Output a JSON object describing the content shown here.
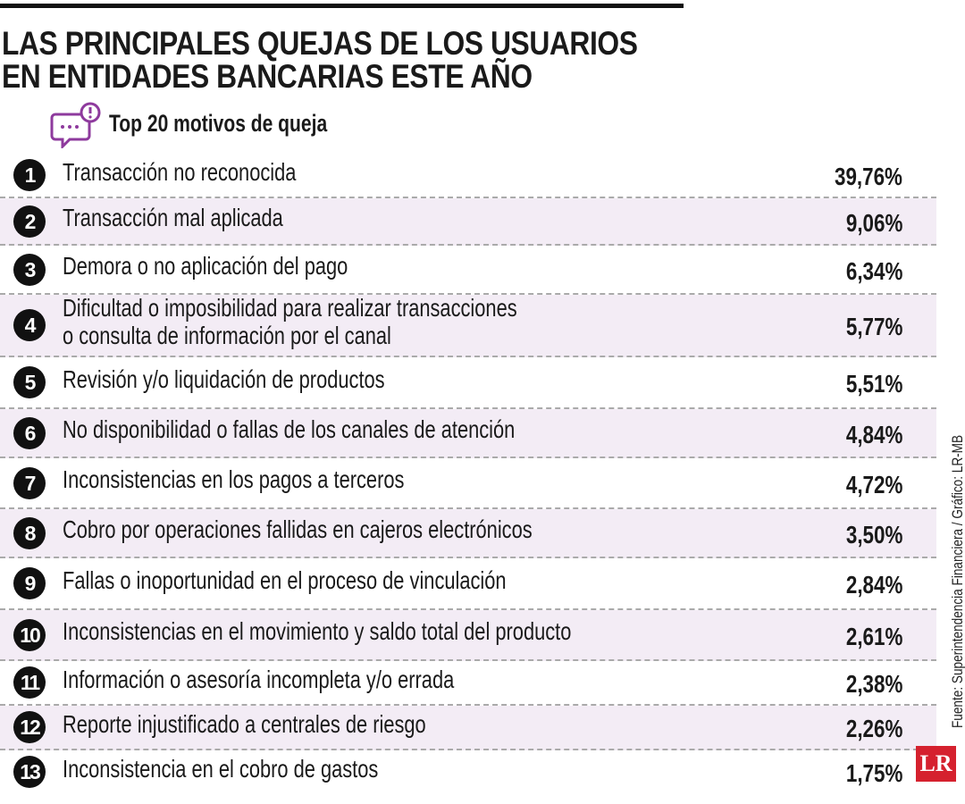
{
  "header": {
    "title_lines": [
      "LAS PRINCIPALES QUEJAS DE LOS USUARIOS",
      "EN ENTIDADES BANCARIAS ESTE AÑO"
    ],
    "subtitle": "Top 20 motivos de queja"
  },
  "rows": [
    {
      "rank": "1",
      "lines": [
        "Transacción no reconocida"
      ],
      "value": "39,76%"
    },
    {
      "rank": "2",
      "lines": [
        "Transacción mal aplicada"
      ],
      "value": "9,06%"
    },
    {
      "rank": "3",
      "lines": [
        "Demora o no aplicación del pago"
      ],
      "value": "6,34%"
    },
    {
      "rank": "4",
      "lines": [
        "Dificultad o imposibilidad para realizar transacciones",
        "o consulta de información por el canal"
      ],
      "value": "5,77%"
    },
    {
      "rank": "5",
      "lines": [
        "Revisión y/o liquidación de productos"
      ],
      "value": "5,51%"
    },
    {
      "rank": "6",
      "lines": [
        "No disponibilidad o fallas de los canales de atención"
      ],
      "value": "4,84%"
    },
    {
      "rank": "7",
      "lines": [
        "Inconsistencias en los pagos a terceros"
      ],
      "value": "4,72%"
    },
    {
      "rank": "8",
      "lines": [
        "Cobro por operaciones fallidas en cajeros electrónicos"
      ],
      "value": "3,50%"
    },
    {
      "rank": "9",
      "lines": [
        "Fallas o inoportunidad en el proceso de vinculación"
      ],
      "value": "2,84%"
    },
    {
      "rank": "10",
      "lines": [
        "Inconsistencias en el movimiento y saldo total del producto"
      ],
      "value": "2,61%"
    },
    {
      "rank": "11",
      "lines": [
        "Información o asesoría incompleta y/o errada"
      ],
      "value": "2,38%"
    },
    {
      "rank": "12",
      "lines": [
        "Reporte injustificado a centrales de riesgo"
      ],
      "value": "2,26%"
    },
    {
      "rank": "13",
      "lines": [
        "Inconsistencia en el cobro de gastos"
      ],
      "value": "1,75%"
    }
  ],
  "source": "Fuente: Superintendencia Financiera / Gráfico: LR-MB",
  "logo": "LR"
}
